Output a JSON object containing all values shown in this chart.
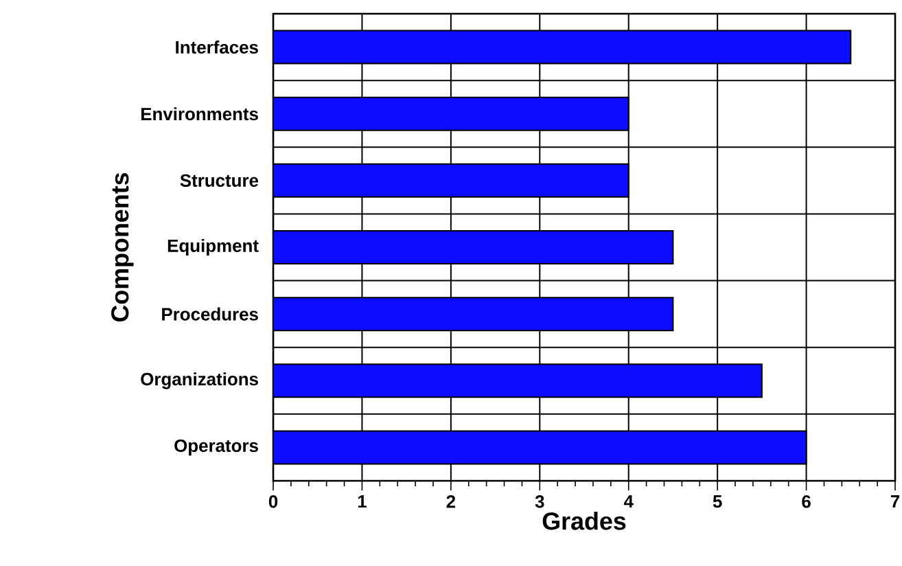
{
  "chart_data": {
    "type": "bar",
    "orientation": "horizontal",
    "xlabel": "Grades",
    "ylabel": "Components",
    "categories": [
      "Interfaces",
      "Environments",
      "Structure",
      "Equipment",
      "Procedures",
      "Organizations",
      "Operators"
    ],
    "values": [
      6.5,
      4,
      4,
      4.5,
      4.5,
      5.5,
      6
    ],
    "color": "#0c0cff",
    "xlim": [
      0,
      7
    ],
    "xticks": [
      0,
      1,
      2,
      3,
      4,
      5,
      6,
      7
    ],
    "grid": true
  }
}
